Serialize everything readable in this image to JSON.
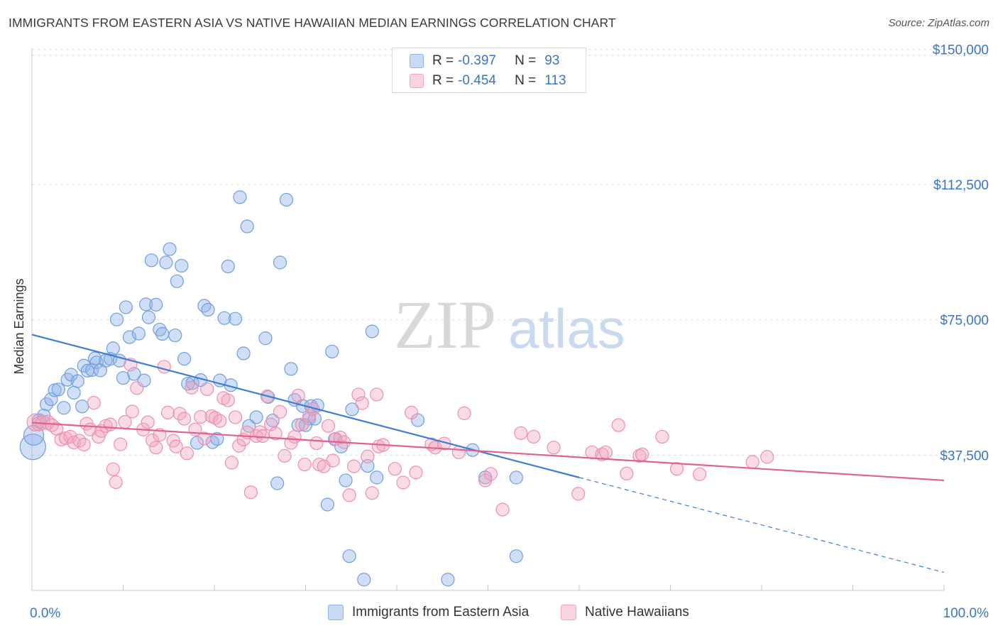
{
  "title": "IMMIGRANTS FROM EASTERN ASIA VS NATIVE HAWAIIAN MEDIAN EARNINGS CORRELATION CHART",
  "source": "Source: ZipAtlas.com",
  "watermark": {
    "zip": "ZIP",
    "atlas": "atlas"
  },
  "legend": {
    "r_label": "R =",
    "n_label": "N =",
    "rows": [
      {
        "r": "-0.397",
        "n": "93",
        "color": "#8fb3e8",
        "fill": "#c9daf5"
      },
      {
        "r": "-0.454",
        "n": "113",
        "color": "#f0a6bf",
        "fill": "#fad3e0"
      }
    ]
  },
  "bottom_legend": [
    {
      "label": "Immigrants from Eastern Asia",
      "color": "#8fb3e8",
      "fill": "#c9daf5"
    },
    {
      "label": "Native Hawaiians",
      "color": "#f0a6bf",
      "fill": "#fad3e0"
    }
  ],
  "chart_data": {
    "type": "scatter",
    "title": "IMMIGRANTS FROM EASTERN ASIA VS NATIVE HAWAIIAN MEDIAN EARNINGS CORRELATION CHART",
    "xlabel": "",
    "ylabel": "Median Earnings",
    "xlim": [
      0,
      100
    ],
    "ylim": [
      0,
      155000
    ],
    "x_tick_labels": [
      "0.0%",
      "100.0%"
    ],
    "y_ticks": [
      37500,
      75000,
      112500,
      150000
    ],
    "y_tick_labels": [
      "$37,500",
      "$75,000",
      "$112,500",
      "$150,000"
    ],
    "grid": true,
    "legend_position": "top-center",
    "series": [
      {
        "name": "Immigrants from Eastern Asia",
        "color": "#6f9fe0",
        "trend": {
          "x0": 0,
          "y0": 70900,
          "x1": 60,
          "y1": 31300,
          "dash_to_x": 100,
          "dash_to_y": 5000,
          "color": "#3b7dd8"
        },
        "points": [
          [
            0.1,
            39800,
            18
          ],
          [
            0.2,
            43000,
            14
          ],
          [
            0.8,
            47000,
            10
          ],
          [
            1.3,
            48500,
            9
          ],
          [
            1.6,
            51600,
            9
          ],
          [
            2.1,
            53000,
            9
          ],
          [
            2.5,
            55500,
            9
          ],
          [
            2.9,
            55700,
            9
          ],
          [
            3.5,
            50600,
            9
          ],
          [
            3.9,
            58400,
            9
          ],
          [
            4.3,
            59800,
            9
          ],
          [
            4.6,
            54800,
            9
          ],
          [
            5,
            58000,
            9
          ],
          [
            5.5,
            51000,
            9
          ],
          [
            5.7,
            62300,
            9
          ],
          [
            6.1,
            60900,
            9
          ],
          [
            6.6,
            61100,
            9
          ],
          [
            6.9,
            64300,
            9
          ],
          [
            7.1,
            63200,
            9
          ],
          [
            7.5,
            61000,
            9
          ],
          [
            8.1,
            63700,
            9
          ],
          [
            8.6,
            64200,
            9
          ],
          [
            8.9,
            67100,
            9
          ],
          [
            9.3,
            75100,
            9
          ],
          [
            9.6,
            63700,
            9
          ],
          [
            10,
            58900,
            9
          ],
          [
            10.3,
            78500,
            9
          ],
          [
            10.7,
            70200,
            9
          ],
          [
            11.2,
            60000,
            9
          ],
          [
            11.7,
            71200,
            9
          ],
          [
            12.3,
            58200,
            9
          ],
          [
            12.5,
            79300,
            9
          ],
          [
            12.8,
            75700,
            9
          ],
          [
            13.1,
            91500,
            9
          ],
          [
            13.6,
            79200,
            9
          ],
          [
            14,
            72300,
            9
          ],
          [
            14.3,
            71100,
            9
          ],
          [
            14.7,
            90900,
            9
          ],
          [
            15.1,
            94600,
            9
          ],
          [
            15.7,
            70700,
            9
          ],
          [
            15.9,
            85700,
            9
          ],
          [
            16.4,
            90000,
            9
          ],
          [
            16.7,
            64200,
            9
          ],
          [
            17.1,
            57300,
            9
          ],
          [
            17.6,
            57500,
            9
          ],
          [
            18.1,
            40900,
            9
          ],
          [
            18.5,
            58300,
            9
          ],
          [
            18.9,
            78900,
            9
          ],
          [
            19.3,
            77800,
            9
          ],
          [
            19.8,
            41100,
            9
          ],
          [
            20.3,
            42000,
            9
          ],
          [
            20.6,
            58200,
            9
          ],
          [
            21.1,
            75500,
            9
          ],
          [
            21.5,
            89800,
            9
          ],
          [
            21.8,
            56900,
            9
          ],
          [
            22.3,
            75300,
            9
          ],
          [
            22.8,
            109000,
            9
          ],
          [
            23.2,
            65700,
            9
          ],
          [
            23.6,
            100900,
            9
          ],
          [
            23.8,
            45600,
            9
          ],
          [
            24.6,
            48000,
            9
          ],
          [
            25.6,
            69900,
            9
          ],
          [
            25.9,
            53600,
            9
          ],
          [
            26.4,
            47100,
            9
          ],
          [
            26.9,
            29700,
            9
          ],
          [
            27.2,
            90900,
            9
          ],
          [
            27.9,
            108300,
            9
          ],
          [
            28.4,
            61400,
            9
          ],
          [
            28.8,
            52800,
            9
          ],
          [
            29.2,
            45800,
            9
          ],
          [
            29.7,
            51100,
            9
          ],
          [
            30,
            45800,
            9
          ],
          [
            30.4,
            47600,
            9
          ],
          [
            30.6,
            51100,
            9
          ],
          [
            31,
            47600,
            9
          ],
          [
            31.3,
            51300,
            9
          ],
          [
            32.4,
            23800,
            9
          ],
          [
            32.9,
            66200,
            9
          ],
          [
            33.2,
            41900,
            9
          ],
          [
            33.9,
            39900,
            9
          ],
          [
            34.4,
            30500,
            9
          ],
          [
            34.8,
            9500,
            9
          ],
          [
            35.1,
            50200,
            9
          ],
          [
            36.4,
            3000,
            9
          ],
          [
            36.8,
            34500,
            9
          ],
          [
            37.3,
            71800,
            9
          ],
          [
            37.8,
            31300,
            9
          ],
          [
            42.3,
            47200,
            9
          ],
          [
            45.6,
            3000,
            9
          ],
          [
            48.3,
            38900,
            9
          ],
          [
            49.7,
            31300,
            9
          ],
          [
            53.1,
            31300,
            9
          ],
          [
            53.1,
            9500,
            9
          ]
        ]
      },
      {
        "name": "Native Hawaiians",
        "color": "#ef8eb0",
        "trend": {
          "x0": 0,
          "y0": 46500,
          "x1": 100,
          "y1": 30500,
          "color": "#e0628f"
        },
        "points": [
          [
            0.4,
            46600,
            12
          ],
          [
            0.8,
            46200,
            10
          ],
          [
            1.2,
            46600,
            10
          ],
          [
            1.7,
            46600,
            10
          ],
          [
            2.2,
            45800,
            9
          ],
          [
            2.7,
            44800,
            9
          ],
          [
            3.2,
            41800,
            9
          ],
          [
            3.7,
            42200,
            9
          ],
          [
            4.2,
            42600,
            9
          ],
          [
            4.6,
            41000,
            9
          ],
          [
            5.2,
            41500,
            9
          ],
          [
            5.7,
            40400,
            9
          ],
          [
            6,
            46200,
            9
          ],
          [
            6.4,
            44600,
            9
          ],
          [
            6.8,
            52000,
            9
          ],
          [
            7.3,
            42600,
            9
          ],
          [
            7.6,
            44200,
            9
          ],
          [
            8.1,
            45600,
            9
          ],
          [
            8.6,
            46000,
            9
          ],
          [
            8.9,
            33600,
            9
          ],
          [
            9.2,
            30000,
            9
          ],
          [
            9.7,
            40500,
            9
          ],
          [
            10.2,
            46700,
            9
          ],
          [
            10.8,
            62600,
            9
          ],
          [
            11,
            49600,
            9
          ],
          [
            11.5,
            56100,
            9
          ],
          [
            12.2,
            44600,
            9
          ],
          [
            12.7,
            46600,
            9
          ],
          [
            13.2,
            41600,
            9
          ],
          [
            13.6,
            39600,
            9
          ],
          [
            14,
            43100,
            9
          ],
          [
            14.5,
            62000,
            9
          ],
          [
            14.9,
            49300,
            9
          ],
          [
            15.5,
            41500,
            9
          ],
          [
            15.8,
            39900,
            9
          ],
          [
            16.2,
            49000,
            9
          ],
          [
            16.7,
            47600,
            9
          ],
          [
            17,
            38000,
            9
          ],
          [
            17.5,
            56200,
            9
          ],
          [
            17.9,
            44600,
            9
          ],
          [
            18.5,
            48100,
            9
          ],
          [
            18.9,
            42100,
            9
          ],
          [
            19.2,
            55800,
            9
          ],
          [
            19.7,
            48300,
            9
          ],
          [
            20.1,
            47800,
            9
          ],
          [
            20.6,
            47000,
            9
          ],
          [
            21,
            53300,
            9
          ],
          [
            21.5,
            52700,
            9
          ],
          [
            21.9,
            35400,
            9
          ],
          [
            22.3,
            48000,
            9
          ],
          [
            22.7,
            40100,
            9
          ],
          [
            23.2,
            41800,
            9
          ],
          [
            23.6,
            43800,
            9
          ],
          [
            24,
            27200,
            9
          ],
          [
            24.6,
            42800,
            9
          ],
          [
            25,
            43900,
            9
          ],
          [
            25.3,
            42800,
            9
          ],
          [
            25.8,
            53800,
            9
          ],
          [
            26.2,
            46000,
            9
          ],
          [
            26.7,
            43500,
            9
          ],
          [
            27.2,
            49500,
            9
          ],
          [
            27.7,
            37300,
            9
          ],
          [
            28.4,
            40900,
            9
          ],
          [
            28.8,
            42600,
            9
          ],
          [
            29.2,
            54000,
            9
          ],
          [
            29.6,
            46000,
            9
          ],
          [
            29.9,
            34900,
            9
          ],
          [
            30.4,
            48300,
            9
          ],
          [
            30.8,
            50300,
            9
          ],
          [
            31.2,
            40800,
            9
          ],
          [
            31.5,
            34900,
            9
          ],
          [
            32,
            34400,
            9
          ],
          [
            32.5,
            45600,
            9
          ],
          [
            33,
            36000,
            9
          ],
          [
            33.3,
            42000,
            9
          ],
          [
            33.8,
            42400,
            9
          ],
          [
            34.2,
            41100,
            9
          ],
          [
            34.8,
            26400,
            9
          ],
          [
            35.3,
            34400,
            9
          ],
          [
            35.8,
            54300,
            9
          ],
          [
            36.2,
            51900,
            9
          ],
          [
            36.8,
            37100,
            9
          ],
          [
            37.3,
            27000,
            9
          ],
          [
            37.8,
            54300,
            9
          ],
          [
            38,
            39900,
            9
          ],
          [
            38.5,
            40300,
            9
          ],
          [
            39.8,
            33700,
            9
          ],
          [
            40.7,
            29900,
            9
          ],
          [
            41.6,
            49300,
            9
          ],
          [
            42.1,
            32700,
            9
          ],
          [
            43.8,
            40500,
            9
          ],
          [
            44.2,
            39600,
            9
          ],
          [
            45.2,
            40700,
            9
          ],
          [
            46.8,
            38300,
            9
          ],
          [
            47.4,
            49100,
            9
          ],
          [
            49.7,
            30500,
            9
          ],
          [
            50.3,
            32300,
            9
          ],
          [
            51.6,
            22400,
            9
          ],
          [
            53.6,
            43600,
            9
          ],
          [
            55,
            42600,
            9
          ],
          [
            57.2,
            39600,
            9
          ],
          [
            59.9,
            26800,
            9
          ],
          [
            61.4,
            38300,
            9
          ],
          [
            62.5,
            37700,
            9
          ],
          [
            62.9,
            38300,
            9
          ],
          [
            64.3,
            45800,
            9
          ],
          [
            65.2,
            32400,
            9
          ],
          [
            66.6,
            37300,
            9
          ],
          [
            66.9,
            37700,
            9
          ],
          [
            69.1,
            42600,
            9
          ],
          [
            70.7,
            33700,
            9
          ],
          [
            73.2,
            32200,
            9
          ],
          [
            79,
            35600,
            9
          ],
          [
            80.6,
            37000,
            9
          ]
        ]
      }
    ]
  }
}
